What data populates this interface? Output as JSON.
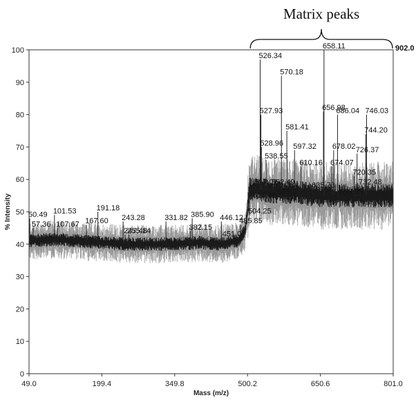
{
  "chart_data": {
    "type": "line",
    "title": "",
    "xlabel": "Mass (m/z)",
    "ylabel": "% Intensity",
    "xlim": [
      49.0,
      801.0
    ],
    "ylim": [
      0,
      100
    ],
    "x_ticks": [
      "49.0",
      "199.4",
      "349.8",
      "500.2",
      "650.6",
      "801.0"
    ],
    "y_ticks": [
      "0",
      "10",
      "20",
      "30",
      "40",
      "50",
      "60",
      "70",
      "80",
      "90",
      "100"
    ],
    "max_intensity_label": "902.0",
    "grid": false,
    "baseline": [
      {
        "x": 49,
        "y": 41
      },
      {
        "x": 100,
        "y": 41.5
      },
      {
        "x": 150,
        "y": 41
      },
      {
        "x": 200,
        "y": 40.5
      },
      {
        "x": 250,
        "y": 40
      },
      {
        "x": 300,
        "y": 40
      },
      {
        "x": 350,
        "y": 40
      },
      {
        "x": 400,
        "y": 40.5
      },
      {
        "x": 440,
        "y": 40
      },
      {
        "x": 480,
        "y": 41
      },
      {
        "x": 495,
        "y": 44
      },
      {
        "x": 500,
        "y": 50
      },
      {
        "x": 504,
        "y": 57
      },
      {
        "x": 520,
        "y": 57
      },
      {
        "x": 560,
        "y": 56
      },
      {
        "x": 600,
        "y": 56
      },
      {
        "x": 650,
        "y": 55
      },
      {
        "x": 700,
        "y": 55
      },
      {
        "x": 750,
        "y": 55
      },
      {
        "x": 801,
        "y": 55
      }
    ],
    "peaks": [
      {
        "mz": 50.49,
        "label": "50.49",
        "intensity": 48
      },
      {
        "mz": 57.36,
        "label": "57.36",
        "intensity": 45
      },
      {
        "mz": 101.53,
        "label": "101.53",
        "intensity": 49
      },
      {
        "mz": 107.67,
        "label": "107.67",
        "intensity": 45
      },
      {
        "mz": 167.6,
        "label": "167.60",
        "intensity": 46
      },
      {
        "mz": 191.18,
        "label": "191.18",
        "intensity": 50
      },
      {
        "mz": 243.28,
        "label": "243.28",
        "intensity": 47
      },
      {
        "mz": 247.48,
        "label": "247.48",
        "intensity": 43
      },
      {
        "mz": 255.14,
        "label": "255.14",
        "intensity": 43
      },
      {
        "mz": 331.82,
        "label": "331.82",
        "intensity": 47
      },
      {
        "mz": 382.15,
        "label": "382.15",
        "intensity": 44
      },
      {
        "mz": 385.9,
        "label": "385.90",
        "intensity": 48
      },
      {
        "mz": 446.12,
        "label": "446.12",
        "intensity": 47
      },
      {
        "mz": 451.0,
        "label": "451.0",
        "intensity": 42
      },
      {
        "mz": 485.85,
        "label": "485.85",
        "intensity": 46
      },
      {
        "mz": 504.25,
        "label": "504.25",
        "intensity": 49
      },
      {
        "mz": 514.48,
        "label": "514.48",
        "intensity": 54
      },
      {
        "mz": 517.01,
        "label": "517.01",
        "intensity": 58
      },
      {
        "mz": 526.34,
        "label": "526.34",
        "intensity": 97
      },
      {
        "mz": 527.93,
        "label": "527.93",
        "intensity": 80
      },
      {
        "mz": 528.96,
        "label": "528.96",
        "intensity": 70
      },
      {
        "mz": 538.55,
        "label": "538.55",
        "intensity": 66
      },
      {
        "mz": 552.49,
        "label": "552.49",
        "intensity": 58
      },
      {
        "mz": 565.0,
        "label": "565.0",
        "intensity": 55
      },
      {
        "mz": 570.18,
        "label": "570.18",
        "intensity": 92
      },
      {
        "mz": 581.41,
        "label": "581.41",
        "intensity": 75
      },
      {
        "mz": 597.32,
        "label": "597.32",
        "intensity": 69
      },
      {
        "mz": 610.16,
        "label": "610.16",
        "intensity": 64
      },
      {
        "mz": 635.73,
        "label": "635.73",
        "intensity": 57
      },
      {
        "mz": 656.98,
        "label": "656.98",
        "intensity": 81
      },
      {
        "mz": 658.11,
        "label": "658.11",
        "intensity": 100
      },
      {
        "mz": 674.07,
        "label": "674.07",
        "intensity": 64
      },
      {
        "mz": 678.02,
        "label": "678.02",
        "intensity": 69
      },
      {
        "mz": 686.04,
        "label": "686.04",
        "intensity": 80
      },
      {
        "mz": 693.05,
        "label": "693.05",
        "intensity": 55
      },
      {
        "mz": 720.35,
        "label": "720.35",
        "intensity": 61
      },
      {
        "mz": 726.37,
        "label": "726.37",
        "intensity": 68
      },
      {
        "mz": 732.48,
        "label": "732.48",
        "intensity": 58
      },
      {
        "mz": 744.2,
        "label": "744.20",
        "intensity": 74
      },
      {
        "mz": 746.03,
        "label": "746.03",
        "intensity": 80
      }
    ],
    "annotation": {
      "text": "Matrix peaks",
      "from_mz": 500.2,
      "to_mz": 801.0
    }
  }
}
